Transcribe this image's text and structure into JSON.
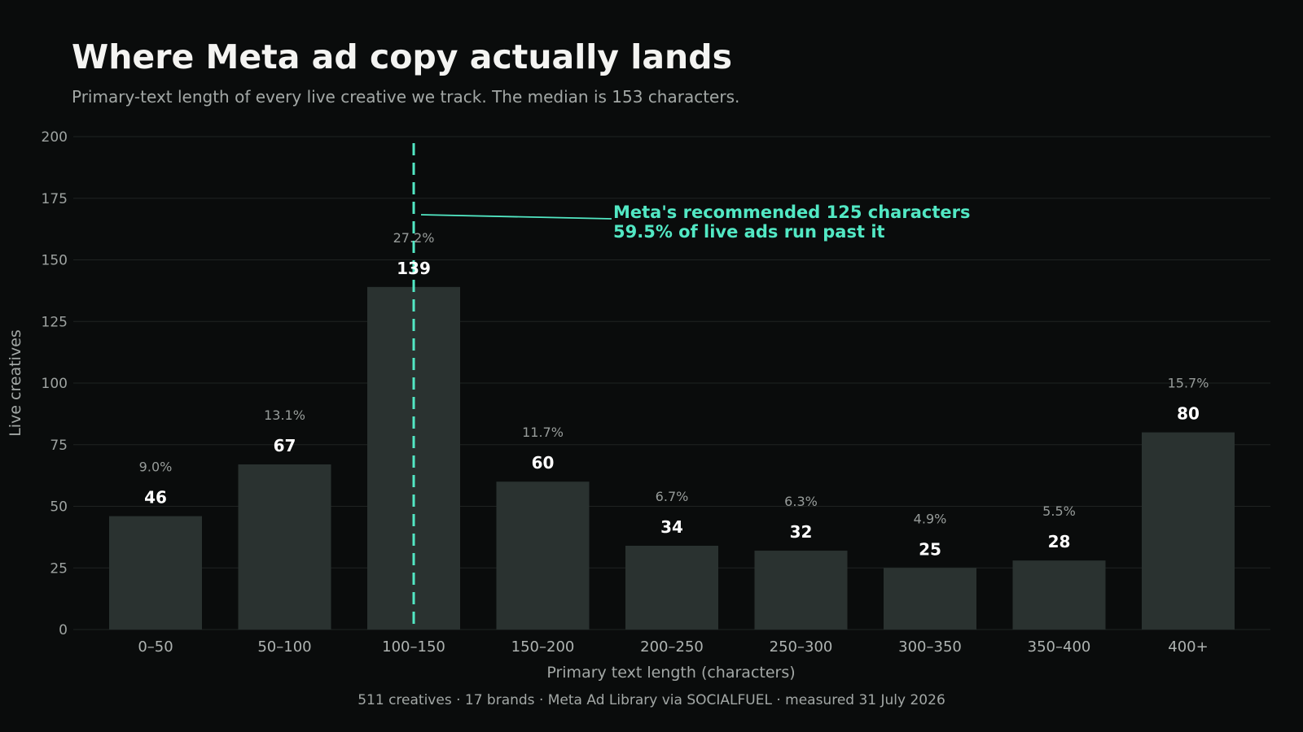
{
  "chart_data": {
    "type": "bar",
    "title": "Where Meta ad copy actually lands",
    "subtitle": "Primary-text length of every live creative we track. The median is 153 characters.",
    "xlabel": "Primary text length (characters)",
    "ylabel": "Live creatives",
    "ylim": [
      0,
      200
    ],
    "yticks": [
      "0",
      "25",
      "50",
      "75",
      "100",
      "125",
      "150",
      "175",
      "200"
    ],
    "grid": true,
    "categories": [
      "0–50",
      "50–100",
      "100–150",
      "150–200",
      "200–250",
      "250–300",
      "300–350",
      "350–400",
      "400+"
    ],
    "values": [
      46,
      67,
      139,
      60,
      34,
      32,
      25,
      28,
      80
    ],
    "value_labels": [
      "46",
      "67",
      "139",
      "60",
      "34",
      "32",
      "25",
      "28",
      "80"
    ],
    "percent_labels": [
      "9.0%",
      "13.1%",
      "27.2%",
      "11.7%",
      "6.7%",
      "6.3%",
      "4.9%",
      "5.5%",
      "15.7%"
    ],
    "reference_line": {
      "x": 125,
      "annotation_line1": "Meta's recommended 125 characters",
      "annotation_line2": "59.5% of live ads run past it"
    },
    "footer": "511 creatives · 17 brands · Meta Ad Library via SOCIALFUEL · measured 31 July 2026",
    "colors": {
      "background": "#0a0c0c",
      "bar": "#2a3230",
      "accent": "#52e8c4",
      "title": "#f4f4f2",
      "muted": "#a3a8a6"
    }
  }
}
